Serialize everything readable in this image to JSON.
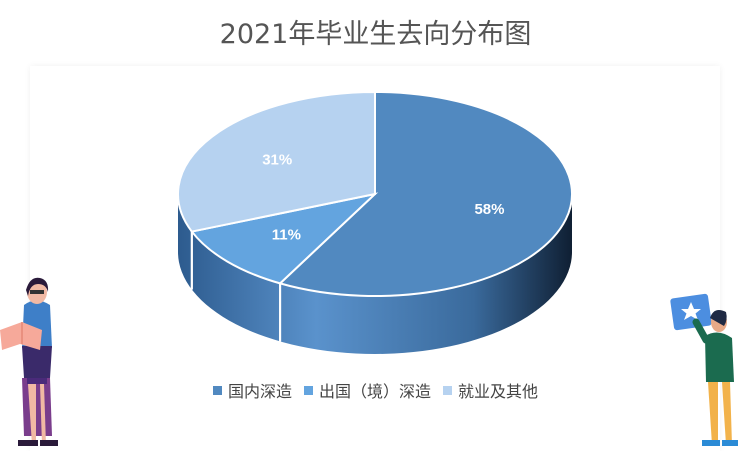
{
  "chart_data": {
    "type": "pie",
    "title": "2021年毕业生去向分布图",
    "categories": [
      "国内深造",
      "出国（境）深造",
      "就业及其他"
    ],
    "values": [
      58,
      11,
      31
    ],
    "labels": [
      "58%",
      "11%",
      "31%"
    ],
    "colors": [
      "#5189c0",
      "#63a4df",
      "#b6d2f0"
    ],
    "legend_position": "bottom"
  }
}
